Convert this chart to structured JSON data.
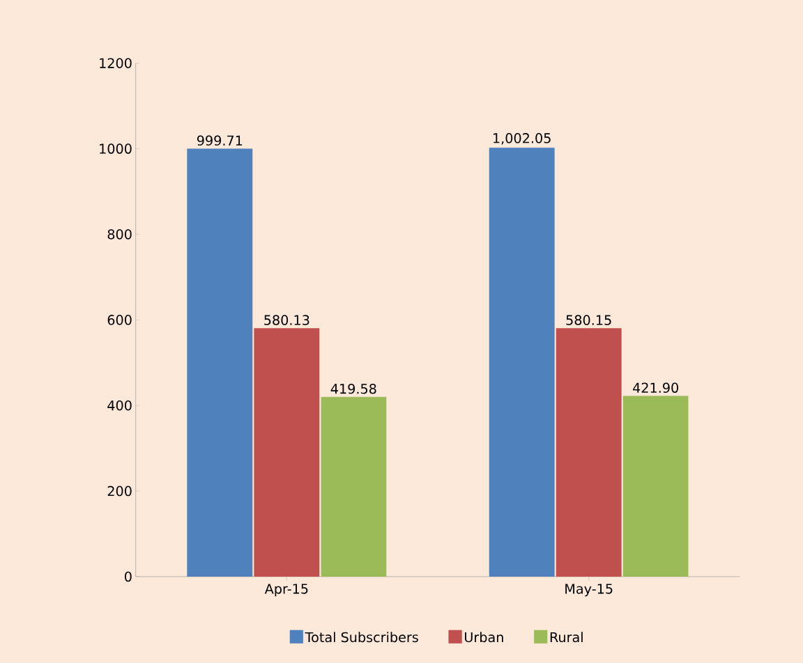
{
  "chart_data": {
    "type": "bar",
    "categories": [
      "Apr-15",
      "May-15"
    ],
    "series": [
      {
        "name": "Total Subscribers",
        "color": "#4f81bd",
        "values": [
          999.71,
          1002.05
        ],
        "value_labels": [
          "999.71",
          "1,002.05"
        ]
      },
      {
        "name": "Urban",
        "color": "#c0504d",
        "values": [
          580.13,
          580.15
        ],
        "value_labels": [
          "580.13",
          "580.15"
        ]
      },
      {
        "name": "Rural",
        "color": "#9bbb59",
        "values": [
          419.58,
          421.9
        ],
        "value_labels": [
          "419.58",
          "421.90"
        ]
      }
    ],
    "ylim": [
      0,
      1200
    ],
    "yticks": [
      0,
      200,
      400,
      600,
      800,
      1000,
      1200
    ],
    "grid": false,
    "legend": "bottom"
  }
}
